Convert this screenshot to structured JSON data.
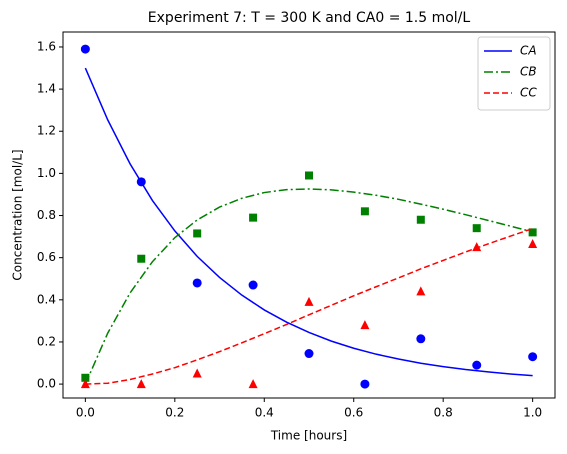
{
  "chart_data": {
    "type": "line",
    "title": "Experiment 7: T = 300 K and CA0 = 1.5 mol/L",
    "xlabel": "Time [hours]",
    "ylabel": "Concentration [mol/L]",
    "x": [
      0,
      0.05,
      0.1,
      0.15,
      0.2,
      0.25,
      0.3,
      0.35,
      0.4,
      0.45,
      0.5,
      0.55,
      0.6,
      0.65,
      0.7,
      0.75,
      0.8,
      0.85,
      0.9,
      0.95,
      1
    ],
    "x_observed": [
      0,
      0.125,
      0.25,
      0.375,
      0.5,
      0.625,
      0.75,
      0.875,
      1
    ],
    "series": [
      {
        "name": "CA",
        "color": "#0000ff",
        "linestyle": "solid",
        "marker": "circle",
        "values": [
          1.5,
          1.254,
          1.045,
          0.871,
          0.727,
          0.606,
          0.506,
          0.422,
          0.352,
          0.294,
          0.245,
          0.204,
          0.17,
          0.142,
          0.119,
          0.099,
          0.083,
          0.069,
          0.058,
          0.048,
          0.04
        ],
        "observed": [
          1.59,
          0.96,
          0.48,
          0.47,
          0.145,
          0.0,
          0.215,
          0.09,
          0.13
        ]
      },
      {
        "name": "CB",
        "color": "#008000",
        "linestyle": "dashdot",
        "marker": "square",
        "values": [
          0,
          0.242,
          0.433,
          0.581,
          0.695,
          0.779,
          0.84,
          0.882,
          0.909,
          0.923,
          0.926,
          0.922,
          0.911,
          0.896,
          0.877,
          0.854,
          0.83,
          0.804,
          0.777,
          0.75,
          0.722
        ],
        "observed": [
          0.03,
          0.595,
          0.715,
          0.79,
          0.99,
          0.82,
          0.78,
          0.74,
          0.72
        ]
      },
      {
        "name": "CC",
        "color": "#ff0000",
        "linestyle": "dashed",
        "marker": "triangle",
        "values": [
          0,
          0.004,
          0.022,
          0.048,
          0.078,
          0.115,
          0.154,
          0.196,
          0.239,
          0.283,
          0.329,
          0.374,
          0.419,
          0.462,
          0.504,
          0.547,
          0.587,
          0.627,
          0.665,
          0.702,
          0.738
        ],
        "observed": [
          0.0,
          0.0,
          0.05,
          0.0,
          0.39,
          0.28,
          0.44,
          0.65,
          0.665
        ]
      }
    ],
    "xlim": [
      -0.05,
      1.05
    ],
    "ylim": [
      -0.066,
      1.671
    ],
    "xticks": [
      {
        "value": 0,
        "label": "0.0"
      },
      0.2,
      0.4,
      0.6,
      0.8,
      {
        "value": 1,
        "label": "1.0"
      }
    ],
    "yticks": [
      {
        "value": 0,
        "label": "0.0"
      },
      0.2,
      0.4,
      0.6,
      0.8,
      {
        "value": 1,
        "label": "1.0"
      },
      1.2,
      1.4,
      1.6
    ],
    "legend": "upper right",
    "grid": false
  }
}
